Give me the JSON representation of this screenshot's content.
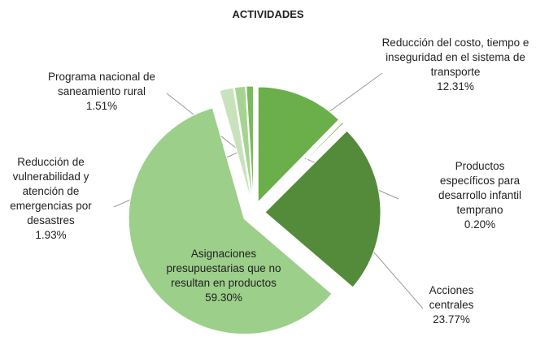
{
  "chart_data": {
    "type": "pie",
    "title": "ACTIVIDADES",
    "categories": [
      "Reducción del costo, tiempo e inseguridad en el sistema de transporte",
      "Productos específicos para desarrollo infantil temprano",
      "Acciones centrales",
      "Asignaciones presupuestarias que no resultan en productos",
      "Reducción de vulnerabilidad y atención de emergencias por desastres",
      "Programa nacional de saneamiento rural",
      null
    ],
    "values": [
      12.31,
      0.2,
      23.77,
      59.3,
      1.93,
      1.51,
      0.98
    ],
    "value_labels": [
      "12.31%",
      "0.20%",
      "23.77%",
      "59.30%",
      "1.93%",
      "1.51%",
      null
    ],
    "colors": [
      "#6aaf4a",
      "#5d9c3e",
      "#548b3a",
      "#9ccf8a",
      "#c8e3bc",
      "#a6d391",
      "#79bb5c"
    ]
  }
}
